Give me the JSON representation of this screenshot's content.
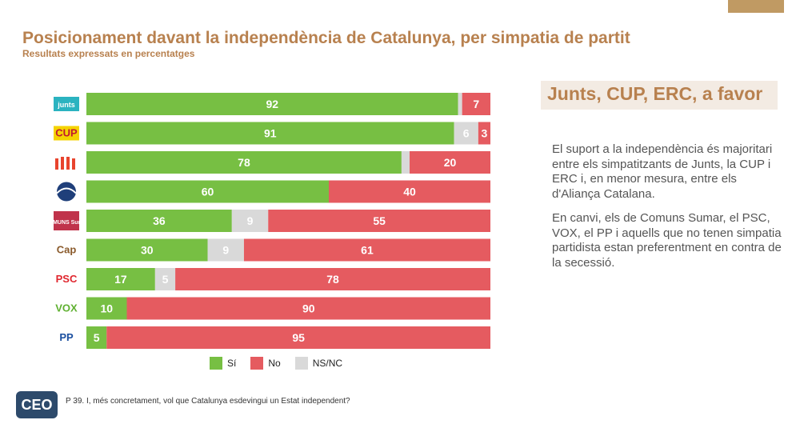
{
  "title": "Posicionament davant la independència de Catalunya, per simpatia de partit",
  "subtitle": "Resultats expressats en percentatges",
  "colors": {
    "si": "#77bf43",
    "no": "#e55b60",
    "nsnc": "#d9d9d9",
    "accent": "#b8814f"
  },
  "chart_data": {
    "type": "bar",
    "orientation": "horizontal",
    "stacked": true,
    "categories": [
      "Junts",
      "CUP",
      "ERC",
      "Aliança Catalana",
      "Comuns Sumar",
      "Cap",
      "PSC",
      "VOX",
      "PP"
    ],
    "category_logos": [
      "junts",
      "CUP",
      "",
      "",
      "COMUNS Sumar",
      "Cap",
      "PSC",
      "VOX",
      "PP"
    ],
    "series": [
      {
        "name": "Sí",
        "values": [
          92,
          91,
          78,
          60,
          36,
          30,
          17,
          10,
          5
        ]
      },
      {
        "name": "NS/NC",
        "values": [
          1,
          6,
          2,
          0,
          9,
          9,
          5,
          0,
          0
        ]
      },
      {
        "name": "No",
        "values": [
          7,
          3,
          20,
          40,
          55,
          61,
          78,
          90,
          95
        ]
      }
    ],
    "label_visible": {
      "Sí": [
        true,
        true,
        true,
        true,
        true,
        true,
        true,
        true,
        true
      ],
      "NS/NC": [
        false,
        true,
        false,
        false,
        true,
        true,
        true,
        false,
        false
      ],
      "No": [
        true,
        true,
        true,
        true,
        true,
        true,
        true,
        true,
        true
      ]
    },
    "legend": [
      "Sí",
      "No",
      "NS/NC"
    ],
    "xlim": [
      0,
      100
    ]
  },
  "highlight": {
    "title": "Junts, CUP, ERC, a favor"
  },
  "text": {
    "p1": "El suport a la independència és majoritari entre els simpatitzants de Junts, la CUP i ERC i, en menor mesura, entre els d'Aliança Catalana.",
    "p2": "En canvi, els de Comuns Sumar, el PSC, VOX, el PP i aquells que no tenen simpatia partidista estan preferentment en contra de la secessió."
  },
  "footer": {
    "logo": "CEO",
    "question": "P 39. I, més concretament, vol que Catalunya esdevingui un Estat independent?"
  }
}
